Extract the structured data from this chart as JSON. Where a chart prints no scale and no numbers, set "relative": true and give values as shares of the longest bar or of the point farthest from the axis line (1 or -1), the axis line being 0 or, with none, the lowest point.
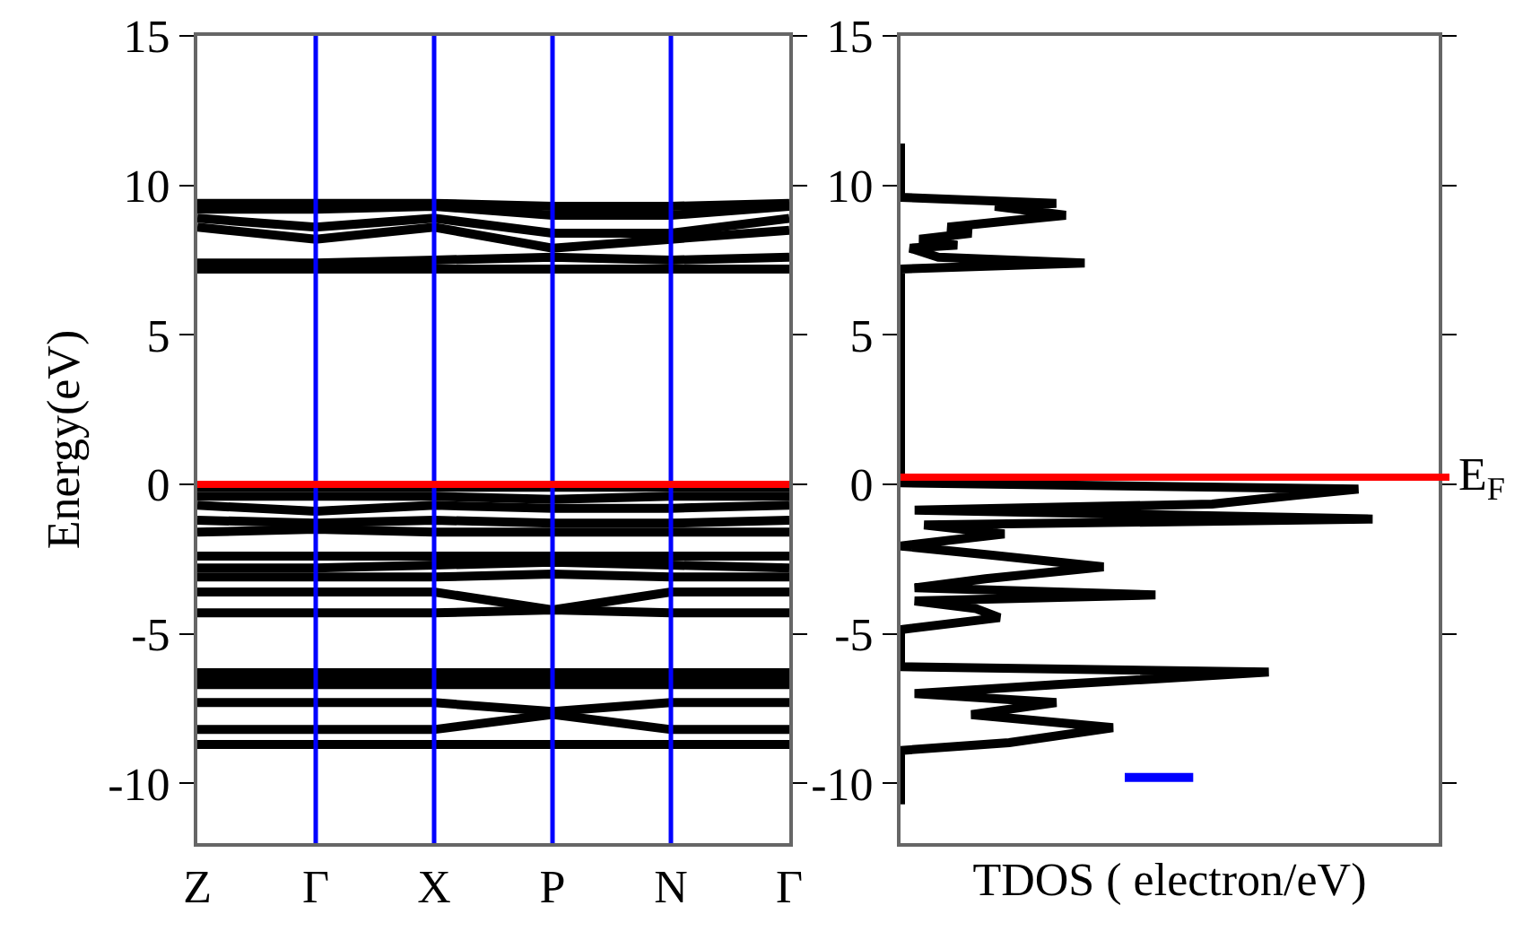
{
  "chart_data": [
    {
      "type": "line",
      "ylabel": "Energy(eV)",
      "categories": [
        "Z",
        "Γ",
        "X",
        "P",
        "N",
        "Γ"
      ],
      "ylim": [
        -12,
        15
      ],
      "yticks": [
        -10,
        -5,
        0,
        5,
        10,
        15
      ],
      "marker": "none",
      "line_style": "solid",
      "series": [
        {
          "color": "#000000",
          "values": [
            9.4,
            9.4,
            9.4,
            9.3,
            9.3,
            9.4
          ]
        },
        {
          "color": "#000000",
          "values": [
            9.2,
            9.2,
            9.3,
            9.0,
            9.0,
            9.3
          ]
        },
        {
          "color": "#000000",
          "values": [
            8.9,
            8.6,
            8.9,
            8.4,
            8.4,
            8.9
          ]
        },
        {
          "color": "#000000",
          "values": [
            8.6,
            8.2,
            8.6,
            7.9,
            8.2,
            8.5
          ]
        },
        {
          "color": "#000000",
          "values": [
            7.4,
            7.4,
            7.5,
            7.6,
            7.5,
            7.6
          ]
        },
        {
          "color": "#000000",
          "values": [
            7.2,
            7.2,
            7.2,
            7.2,
            7.2,
            7.2
          ]
        },
        {
          "color": "#000000",
          "values": [
            -0.1,
            -0.1,
            -0.1,
            -0.1,
            -0.1,
            -0.1
          ]
        },
        {
          "color": "#000000",
          "values": [
            -0.4,
            -0.4,
            -0.4,
            -0.5,
            -0.4,
            -0.4
          ]
        },
        {
          "color": "#000000",
          "values": [
            -0.7,
            -0.9,
            -0.7,
            -0.8,
            -0.8,
            -0.7
          ]
        },
        {
          "color": "#000000",
          "values": [
            -1.2,
            -1.3,
            -1.2,
            -1.3,
            -1.3,
            -1.2
          ]
        },
        {
          "color": "#000000",
          "values": [
            -1.6,
            -1.5,
            -1.6,
            -1.6,
            -1.6,
            -1.6
          ]
        },
        {
          "color": "#000000",
          "values": [
            -2.4,
            -2.4,
            -2.4,
            -2.4,
            -2.4,
            -2.4
          ]
        },
        {
          "color": "#000000",
          "values": [
            -2.8,
            -2.8,
            -2.7,
            -2.6,
            -2.7,
            -2.8
          ]
        },
        {
          "color": "#000000",
          "values": [
            -3.1,
            -3.1,
            -3.1,
            -3.0,
            -3.1,
            -3.1
          ]
        },
        {
          "color": "#000000",
          "values": [
            -3.6,
            -3.6,
            -3.6,
            -4.2,
            -3.6,
            -3.6
          ]
        },
        {
          "color": "#000000",
          "values": [
            -4.3,
            -4.3,
            -4.3,
            -4.2,
            -4.3,
            -4.3
          ]
        },
        {
          "color": "#000000",
          "values": [
            -6.3,
            -6.3,
            -6.3,
            -6.3,
            -6.3,
            -6.3
          ]
        },
        {
          "color": "#000000",
          "values": [
            -6.5,
            -6.5,
            -6.5,
            -6.5,
            -6.5,
            -6.5
          ]
        },
        {
          "color": "#000000",
          "values": [
            -6.7,
            -6.7,
            -6.7,
            -6.7,
            -6.7,
            -6.7
          ]
        },
        {
          "color": "#000000",
          "values": [
            -7.3,
            -7.3,
            -7.3,
            -7.6,
            -7.3,
            -7.3
          ]
        },
        {
          "color": "#000000",
          "values": [
            -8.2,
            -8.2,
            -8.2,
            -7.7,
            -8.2,
            -8.2
          ]
        },
        {
          "color": "#000000",
          "values": [
            -8.7,
            -8.7,
            -8.7,
            -8.7,
            -8.7,
            -8.7
          ]
        }
      ],
      "ref_lines": [
        {
          "axis": "x",
          "value": "Γ",
          "color": "#0000ff"
        },
        {
          "axis": "x",
          "value": "X",
          "color": "#0000ff"
        },
        {
          "axis": "x",
          "value": "P",
          "color": "#0000ff"
        },
        {
          "axis": "x",
          "value": "N",
          "color": "#0000ff"
        },
        {
          "axis": "y",
          "value": 0,
          "color": "#ff0000"
        }
      ]
    },
    {
      "type": "line",
      "orientation": "horizontal",
      "relative": true,
      "xlabel": "TDOS ( electron/eV)",
      "ylim": [
        -12,
        15
      ],
      "yticks": [
        -10,
        -5,
        0,
        5,
        10,
        15
      ],
      "tick_labels": "y",
      "marker": "none",
      "line_style": "solid",
      "series": [
        {
          "color": "#000000",
          "x": [
            11.4,
            9.6,
            9.4,
            9.3,
            9.0,
            8.8,
            8.6,
            8.4,
            8.2,
            8.0,
            7.9,
            7.6,
            7.4,
            7.2,
            0.05,
            -0.16,
            -0.36,
            -0.66,
            -0.86,
            -1.16,
            -1.36,
            -1.66,
            -2.06,
            -2.36,
            -2.76,
            -3.16,
            -3.46,
            -3.7,
            -3.9,
            -4.16,
            -4.46,
            -4.86,
            -6.1,
            -6.28,
            -6.7,
            -7.0,
            -7.3,
            -7.7,
            -8.14,
            -8.64,
            -8.9,
            -10.7
          ],
          "values": [
            0,
            0,
            0.33,
            0.2,
            0.35,
            0.22,
            0.1,
            0.15,
            0.04,
            0.12,
            0.02,
            0.08,
            0.39,
            0,
            0,
            0.97,
            0.84,
            0.66,
            0.03,
            1.0,
            0.05,
            0.22,
            0,
            0.19,
            0.43,
            0.18,
            0.03,
            0.54,
            0.03,
            0.16,
            0.21,
            0,
            0,
            0.78,
            0.33,
            0.03,
            0.33,
            0.15,
            0.45,
            0.23,
            0,
            0
          ]
        },
        {
          "color": "#0000ff",
          "x": [
            -9.8,
            -9.8
          ],
          "values": [
            0.475,
            0.62
          ]
        }
      ],
      "ref_lines": [
        {
          "axis": "y",
          "value": 0.24,
          "color": "#ff0000",
          "label": "E$_{F}$"
        }
      ]
    }
  ]
}
